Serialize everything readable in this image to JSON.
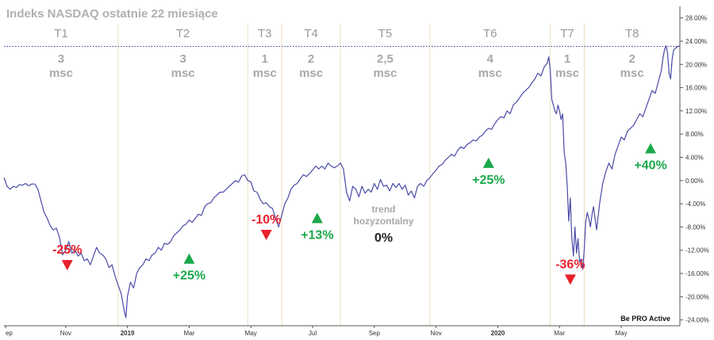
{
  "chart_data": {
    "type": "line",
    "title": "Indeks NASDAQ ostatnie 22 miesiące",
    "brand": "Be PRO Active",
    "ylim": [
      -25,
      30
    ],
    "yticks": [
      "-24.00%",
      "-20.00%",
      "-16.00%",
      "-12.00%",
      "-8.00%",
      "-4.00%",
      "0.00%",
      "4.00%",
      "8.00%",
      "12.00%",
      "16.00%",
      "20.00%",
      "24.00%",
      "28.00%"
    ],
    "xlim": [
      0,
      21.9
    ],
    "xticks": [
      {
        "label": "ep",
        "x": 0.05,
        "bold": false
      },
      {
        "label": "Nov",
        "x": 2.0,
        "bold": false
      },
      {
        "label": "2019",
        "x": 4.0,
        "bold": true
      },
      {
        "label": "Mar",
        "x": 6.0,
        "bold": false
      },
      {
        "label": "May",
        "x": 8.0,
        "bold": false
      },
      {
        "label": "Jul",
        "x": 10.0,
        "bold": false
      },
      {
        "label": "Sep",
        "x": 12.0,
        "bold": false
      },
      {
        "label": "Nov",
        "x": 14.0,
        "bold": false
      },
      {
        "label": "2020",
        "x": 16.0,
        "bold": true
      },
      {
        "label": "Mar",
        "x": 18.0,
        "bold": false
      },
      {
        "label": "May",
        "x": 20.0,
        "bold": false
      }
    ],
    "reference_line": 23.1,
    "period_bounds": [
      3.7,
      7.9,
      9.0,
      10.9,
      13.8,
      17.7,
      18.8
    ],
    "periods": [
      {
        "label": "T1",
        "duration": [
          "3",
          "msc"
        ],
        "x": 1.85
      },
      {
        "label": "T2",
        "duration": [
          "3",
          "msc"
        ],
        "x": 5.8
      },
      {
        "label": "T3",
        "duration": [
          "1",
          "msc"
        ],
        "x": 8.45
      },
      {
        "label": "T4",
        "duration": [
          "2",
          "msc"
        ],
        "x": 9.95
      },
      {
        "label": "T5",
        "duration": [
          "2,5",
          "msc"
        ],
        "x": 12.35
      },
      {
        "label": "T6",
        "duration": [
          "4",
          "msc"
        ],
        "x": 15.75
      },
      {
        "label": "T7",
        "duration": [
          "1",
          "msc"
        ],
        "x": 18.25
      },
      {
        "label": "T8",
        "duration": [
          "2",
          "msc"
        ],
        "x": 20.35
      }
    ],
    "annotations": [
      {
        "text": "-25%",
        "x": 2.05,
        "y": -14.5,
        "dir": "down",
        "color": "#e8202a"
      },
      {
        "text": "+25%",
        "x": 6.0,
        "y": -13.5,
        "dir": "up",
        "color": "#1aa84a"
      },
      {
        "text": "-10%",
        "x": 8.5,
        "y": -9.3,
        "dir": "down",
        "color": "#e8202a"
      },
      {
        "text": "+13%",
        "x": 10.15,
        "y": -6.5,
        "dir": "up",
        "color": "#1aa84a"
      },
      {
        "text": "+25%",
        "x": 15.7,
        "y": 3.0,
        "dir": "up",
        "color": "#1aa84a"
      },
      {
        "text": "-36%",
        "x": 18.35,
        "y": -17.0,
        "dir": "down",
        "color": "#e8202a"
      },
      {
        "text": "+40%",
        "x": 20.95,
        "y": 5.5,
        "dir": "up",
        "color": "#1aa84a"
      }
    ],
    "flat_note": {
      "lines": [
        "trend",
        "hozyzontalny"
      ],
      "value": "0%",
      "x": 12.3,
      "y": -5.5
    },
    "series": [
      {
        "values": [
          [
            0.0,
            0.5
          ],
          [
            0.1,
            -1.0
          ],
          [
            0.2,
            -1.5
          ],
          [
            0.3,
            -1.0
          ],
          [
            0.4,
            -1.2
          ],
          [
            0.5,
            -0.7
          ],
          [
            0.6,
            -0.8
          ],
          [
            0.7,
            -0.5
          ],
          [
            0.8,
            -0.9
          ],
          [
            0.9,
            -0.6
          ],
          [
            1.0,
            -0.6
          ],
          [
            1.1,
            -1.5
          ],
          [
            1.2,
            -3.5
          ],
          [
            1.3,
            -5.5
          ],
          [
            1.4,
            -6.5
          ],
          [
            1.5,
            -7.8
          ],
          [
            1.6,
            -8.5
          ],
          [
            1.7,
            -8.2
          ],
          [
            1.8,
            -9.8
          ],
          [
            1.9,
            -12.8
          ],
          [
            2.0,
            -12.0
          ],
          [
            2.1,
            -10.5
          ],
          [
            2.2,
            -12.5
          ],
          [
            2.3,
            -12.0
          ],
          [
            2.4,
            -13.0
          ],
          [
            2.5,
            -12.5
          ],
          [
            2.6,
            -13.8
          ],
          [
            2.7,
            -13.5
          ],
          [
            2.8,
            -14.5
          ],
          [
            2.9,
            -13.0
          ],
          [
            3.0,
            -11.5
          ],
          [
            3.1,
            -12.5
          ],
          [
            3.2,
            -12.8
          ],
          [
            3.3,
            -13.5
          ],
          [
            3.4,
            -15.0
          ],
          [
            3.5,
            -14.5
          ],
          [
            3.6,
            -16.5
          ],
          [
            3.7,
            -18.0
          ],
          [
            3.8,
            -19.5
          ],
          [
            3.9,
            -22.5
          ],
          [
            3.95,
            -23.6
          ],
          [
            4.0,
            -20.0
          ],
          [
            4.1,
            -17.5
          ],
          [
            4.2,
            -18.5
          ],
          [
            4.3,
            -16.0
          ],
          [
            4.4,
            -15.0
          ],
          [
            4.5,
            -14.5
          ],
          [
            4.6,
            -13.5
          ],
          [
            4.7,
            -13.8
          ],
          [
            4.8,
            -12.8
          ],
          [
            4.9,
            -12.5
          ],
          [
            5.0,
            -11.5
          ],
          [
            5.1,
            -12.0
          ],
          [
            5.2,
            -10.8
          ],
          [
            5.3,
            -11.0
          ],
          [
            5.4,
            -10.5
          ],
          [
            5.5,
            -9.5
          ],
          [
            5.6,
            -9.0
          ],
          [
            5.7,
            -8.5
          ],
          [
            5.8,
            -7.8
          ],
          [
            5.9,
            -7.5
          ],
          [
            6.0,
            -6.8
          ],
          [
            6.1,
            -7.2
          ],
          [
            6.2,
            -6.5
          ],
          [
            6.3,
            -5.8
          ],
          [
            6.4,
            -6.0
          ],
          [
            6.5,
            -4.5
          ],
          [
            6.6,
            -4.0
          ],
          [
            6.7,
            -3.8
          ],
          [
            6.8,
            -3.0
          ],
          [
            6.9,
            -2.5
          ],
          [
            7.0,
            -2.0
          ],
          [
            7.1,
            -2.0
          ],
          [
            7.2,
            -1.5
          ],
          [
            7.3,
            -1.0
          ],
          [
            7.4,
            -0.5
          ],
          [
            7.5,
            0.0
          ],
          [
            7.6,
            -0.3
          ],
          [
            7.7,
            0.8
          ],
          [
            7.8,
            1.0
          ],
          [
            7.85,
            0.5
          ],
          [
            7.9,
            0.0
          ],
          [
            8.0,
            -0.2
          ],
          [
            8.1,
            -1.8
          ],
          [
            8.2,
            -2.0
          ],
          [
            8.3,
            -3.2
          ],
          [
            8.4,
            -4.0
          ],
          [
            8.5,
            -3.8
          ],
          [
            8.6,
            -4.5
          ],
          [
            8.7,
            -4.8
          ],
          [
            8.8,
            -6.5
          ],
          [
            8.9,
            -8.0
          ],
          [
            9.0,
            -6.0
          ],
          [
            9.1,
            -4.0
          ],
          [
            9.2,
            -3.0
          ],
          [
            9.3,
            -1.5
          ],
          [
            9.4,
            -0.8
          ],
          [
            9.5,
            -0.5
          ],
          [
            9.6,
            0.3
          ],
          [
            9.7,
            1.0
          ],
          [
            9.8,
            0.7
          ],
          [
            9.9,
            1.2
          ],
          [
            10.0,
            1.8
          ],
          [
            10.1,
            2.5
          ],
          [
            10.2,
            2.0
          ],
          [
            10.3,
            2.5
          ],
          [
            10.4,
            2.0
          ],
          [
            10.5,
            3.0
          ],
          [
            10.6,
            2.5
          ],
          [
            10.7,
            2.2
          ],
          [
            10.8,
            2.5
          ],
          [
            10.9,
            3.0
          ],
          [
            11.0,
            2.0
          ],
          [
            11.1,
            -2.0
          ],
          [
            11.2,
            -3.5
          ],
          [
            11.3,
            -1.0
          ],
          [
            11.4,
            -1.5
          ],
          [
            11.5,
            -2.8
          ],
          [
            11.6,
            -1.0
          ],
          [
            11.7,
            -2.2
          ],
          [
            11.8,
            -1.5
          ],
          [
            11.9,
            -2.0
          ],
          [
            12.0,
            -0.5
          ],
          [
            12.1,
            -1.5
          ],
          [
            12.2,
            0.2
          ],
          [
            12.3,
            -1.0
          ],
          [
            12.4,
            -0.8
          ],
          [
            12.5,
            -1.8
          ],
          [
            12.6,
            -0.5
          ],
          [
            12.7,
            -1.2
          ],
          [
            12.8,
            -0.5
          ],
          [
            12.9,
            -1.5
          ],
          [
            13.0,
            -0.8
          ],
          [
            13.1,
            -2.5
          ],
          [
            13.2,
            -1.8
          ],
          [
            13.3,
            -3.0
          ],
          [
            13.4,
            -1.0
          ],
          [
            13.5,
            -0.5
          ],
          [
            13.6,
            -1.0
          ],
          [
            13.7,
            0.0
          ],
          [
            13.8,
            0.5
          ],
          [
            13.9,
            1.2
          ],
          [
            14.0,
            1.8
          ],
          [
            14.1,
            2.5
          ],
          [
            14.2,
            2.8
          ],
          [
            14.3,
            3.5
          ],
          [
            14.4,
            4.0
          ],
          [
            14.5,
            4.5
          ],
          [
            14.6,
            4.2
          ],
          [
            14.7,
            5.2
          ],
          [
            14.8,
            5.8
          ],
          [
            14.9,
            5.5
          ],
          [
            15.0,
            6.2
          ],
          [
            15.1,
            6.5
          ],
          [
            15.2,
            7.0
          ],
          [
            15.3,
            6.8
          ],
          [
            15.4,
            7.5
          ],
          [
            15.5,
            7.8
          ],
          [
            15.6,
            8.5
          ],
          [
            15.7,
            9.0
          ],
          [
            15.8,
            8.8
          ],
          [
            15.9,
            9.8
          ],
          [
            16.0,
            10.5
          ],
          [
            16.1,
            11.0
          ],
          [
            16.2,
            10.8
          ],
          [
            16.3,
            12.0
          ],
          [
            16.4,
            11.5
          ],
          [
            16.5,
            13.0
          ],
          [
            16.6,
            13.5
          ],
          [
            16.7,
            14.2
          ],
          [
            16.8,
            15.0
          ],
          [
            16.9,
            15.5
          ],
          [
            17.0,
            16.0
          ],
          [
            17.1,
            16.8
          ],
          [
            17.2,
            17.5
          ],
          [
            17.3,
            18.5
          ],
          [
            17.4,
            18.0
          ],
          [
            17.5,
            19.5
          ],
          [
            17.6,
            20.2
          ],
          [
            17.65,
            21.3
          ],
          [
            17.7,
            19.0
          ],
          [
            17.75,
            14.0
          ],
          [
            17.8,
            13.0
          ],
          [
            17.85,
            12.0
          ],
          [
            17.9,
            11.5
          ],
          [
            17.95,
            13.0
          ],
          [
            18.0,
            12.0
          ],
          [
            18.05,
            10.5
          ],
          [
            18.1,
            11.5
          ],
          [
            18.15,
            5.0
          ],
          [
            18.2,
            3.0
          ],
          [
            18.25,
            -1.0
          ],
          [
            18.3,
            -7.0
          ],
          [
            18.35,
            -3.0
          ],
          [
            18.4,
            -10.0
          ],
          [
            18.45,
            -13.0
          ],
          [
            18.5,
            -8.0
          ],
          [
            18.55,
            -12.5
          ],
          [
            18.6,
            -10.0
          ],
          [
            18.65,
            -14.0
          ],
          [
            18.7,
            -13.5
          ],
          [
            18.75,
            -15.3
          ],
          [
            18.8,
            -12.0
          ],
          [
            18.85,
            -7.0
          ],
          [
            18.9,
            -5.5
          ],
          [
            18.95,
            -6.5
          ],
          [
            19.0,
            -8.0
          ],
          [
            19.05,
            -6.0
          ],
          [
            19.1,
            -4.5
          ],
          [
            19.2,
            -8.5
          ],
          [
            19.3,
            -4.0
          ],
          [
            19.4,
            -0.5
          ],
          [
            19.5,
            1.5
          ],
          [
            19.6,
            3.0
          ],
          [
            19.7,
            2.0
          ],
          [
            19.8,
            4.5
          ],
          [
            19.9,
            6.0
          ],
          [
            20.0,
            7.5
          ],
          [
            20.1,
            7.0
          ],
          [
            20.2,
            8.5
          ],
          [
            20.3,
            9.0
          ],
          [
            20.4,
            9.5
          ],
          [
            20.5,
            10.5
          ],
          [
            20.6,
            11.5
          ],
          [
            20.7,
            11.0
          ],
          [
            20.8,
            12.5
          ],
          [
            20.9,
            14.0
          ],
          [
            21.0,
            15.5
          ],
          [
            21.1,
            15.0
          ],
          [
            21.2,
            17.0
          ],
          [
            21.3,
            19.0
          ],
          [
            21.35,
            21.0
          ],
          [
            21.4,
            22.5
          ],
          [
            21.45,
            23.2
          ],
          [
            21.5,
            22.0
          ],
          [
            21.55,
            18.5
          ],
          [
            21.6,
            17.5
          ],
          [
            21.65,
            21.0
          ],
          [
            21.7,
            22.5
          ],
          [
            21.8,
            23.0
          ],
          [
            21.9,
            23.2
          ]
        ]
      }
    ]
  }
}
